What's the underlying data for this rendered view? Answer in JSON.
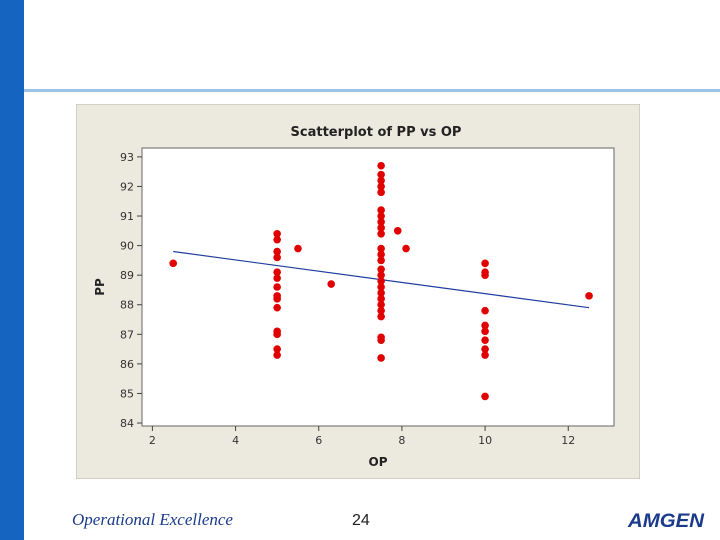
{
  "slide": {
    "footer_title": "Operational Excellence",
    "page_number": "24",
    "logo_text": "AMGEN",
    "accent_color": "#1565c0",
    "rule_color": "#9ec3e6"
  },
  "chart_data": {
    "type": "scatter",
    "title": "Scatterplot of PP vs OP",
    "xlabel": "OP",
    "ylabel": "PP",
    "xlim": [
      1.75,
      13.1
    ],
    "ylim": [
      83.9,
      93.3
    ],
    "xticks": [
      2,
      4,
      6,
      8,
      10,
      12
    ],
    "yticks": [
      84,
      85,
      86,
      87,
      88,
      89,
      90,
      91,
      92,
      93
    ],
    "grid": false,
    "legend": "none",
    "point_color": "#e00000",
    "line_color": "#1f3fa0",
    "trendline": {
      "x": [
        2.5,
        12.5
      ],
      "y": [
        89.8,
        87.9
      ]
    },
    "points": [
      {
        "x": 2.5,
        "y": 89.4
      },
      {
        "x": 5,
        "y": 90.4
      },
      {
        "x": 5,
        "y": 90.2
      },
      {
        "x": 5,
        "y": 89.8
      },
      {
        "x": 5,
        "y": 89.6
      },
      {
        "x": 5,
        "y": 89.1
      },
      {
        "x": 5,
        "y": 88.9
      },
      {
        "x": 5,
        "y": 88.6
      },
      {
        "x": 5,
        "y": 88.3
      },
      {
        "x": 5,
        "y": 88.2
      },
      {
        "x": 5,
        "y": 87.9
      },
      {
        "x": 5,
        "y": 87.1
      },
      {
        "x": 5,
        "y": 87.0
      },
      {
        "x": 5,
        "y": 86.5
      },
      {
        "x": 5,
        "y": 86.3
      },
      {
        "x": 5.5,
        "y": 89.9
      },
      {
        "x": 6.3,
        "y": 88.7
      },
      {
        "x": 7.5,
        "y": 92.7
      },
      {
        "x": 7.5,
        "y": 92.4
      },
      {
        "x": 7.5,
        "y": 92.2
      },
      {
        "x": 7.5,
        "y": 92.0
      },
      {
        "x": 7.5,
        "y": 91.8
      },
      {
        "x": 7.5,
        "y": 91.2
      },
      {
        "x": 7.5,
        "y": 91.0
      },
      {
        "x": 7.5,
        "y": 90.8
      },
      {
        "x": 7.5,
        "y": 90.6
      },
      {
        "x": 7.5,
        "y": 90.4
      },
      {
        "x": 7.5,
        "y": 89.9
      },
      {
        "x": 7.5,
        "y": 89.7
      },
      {
        "x": 7.5,
        "y": 89.5
      },
      {
        "x": 7.5,
        "y": 89.2
      },
      {
        "x": 7.5,
        "y": 89.0
      },
      {
        "x": 7.5,
        "y": 88.8
      },
      {
        "x": 7.5,
        "y": 88.6
      },
      {
        "x": 7.5,
        "y": 88.4
      },
      {
        "x": 7.5,
        "y": 88.2
      },
      {
        "x": 7.5,
        "y": 88.0
      },
      {
        "x": 7.5,
        "y": 87.8
      },
      {
        "x": 7.5,
        "y": 87.6
      },
      {
        "x": 7.5,
        "y": 86.9
      },
      {
        "x": 7.5,
        "y": 86.8
      },
      {
        "x": 7.5,
        "y": 86.2
      },
      {
        "x": 7.9,
        "y": 90.5
      },
      {
        "x": 8.1,
        "y": 89.9
      },
      {
        "x": 10,
        "y": 89.4
      },
      {
        "x": 10,
        "y": 89.1
      },
      {
        "x": 10,
        "y": 89.0
      },
      {
        "x": 10,
        "y": 87.8
      },
      {
        "x": 10,
        "y": 87.3
      },
      {
        "x": 10,
        "y": 87.1
      },
      {
        "x": 10,
        "y": 86.8
      },
      {
        "x": 10,
        "y": 86.5
      },
      {
        "x": 10,
        "y": 86.3
      },
      {
        "x": 10,
        "y": 84.9
      },
      {
        "x": 12.5,
        "y": 88.3
      }
    ]
  }
}
